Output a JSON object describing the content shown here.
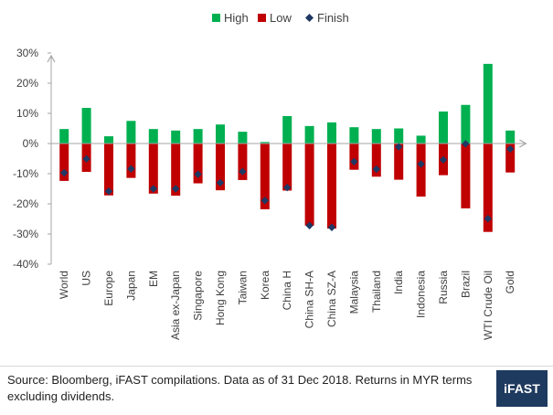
{
  "chart_data": {
    "type": "bar",
    "categories": [
      "World",
      "US",
      "Europe",
      "Japan",
      "EM",
      "Asia ex-Japan",
      "Singapore",
      "Hong Kong",
      "Taiwan",
      "Korea",
      "China H",
      "China SH-A",
      "China SZ-A",
      "Malaysia",
      "Thailand",
      "India",
      "Indonesia",
      "Russia",
      "Brazil",
      "WTI Crude Oil",
      "Gold"
    ],
    "series": [
      {
        "name": "High",
        "color": "#00b050",
        "values": [
          4.8,
          11.8,
          2.4,
          7.5,
          4.8,
          4.3,
          4.8,
          6.3,
          3.9,
          0.5,
          9.1,
          5.8,
          7.0,
          5.4,
          4.8,
          5.0,
          2.6,
          10.6,
          12.8,
          26.4,
          4.3
        ]
      },
      {
        "name": "Low",
        "color": "#c00000",
        "values": [
          -12.4,
          -9.4,
          -17.2,
          -11.4,
          -16.6,
          -17.3,
          -13.2,
          -15.5,
          -12.1,
          -21.8,
          -15.6,
          -27.2,
          -28.2,
          -8.7,
          -11.0,
          -12.0,
          -17.6,
          -10.5,
          -21.5,
          -29.3,
          -9.6
        ]
      },
      {
        "name": "Finish",
        "color": "#1f3864",
        "values": [
          -9.7,
          -5.1,
          -15.8,
          -8.4,
          -15.0,
          -15.0,
          -10.2,
          -13.0,
          -9.3,
          -18.9,
          -14.6,
          -27.2,
          -27.8,
          -6.0,
          -8.5,
          -1.1,
          -6.8,
          -5.4,
          -0.1,
          -24.9,
          -1.8
        ]
      }
    ],
    "yticks": [
      "30%",
      "20%",
      "10%",
      "0%",
      "-10%",
      "-20%",
      "-30%",
      "-40%"
    ],
    "ylim": [
      -40,
      30
    ],
    "grid": false,
    "legend": "top-center"
  },
  "footer": {
    "source": "Source: Bloomberg, iFAST compilations. Data as of 31 Dec 2018.  Returns in MYR terms excluding dividends.",
    "logo_text": "iFAST"
  }
}
